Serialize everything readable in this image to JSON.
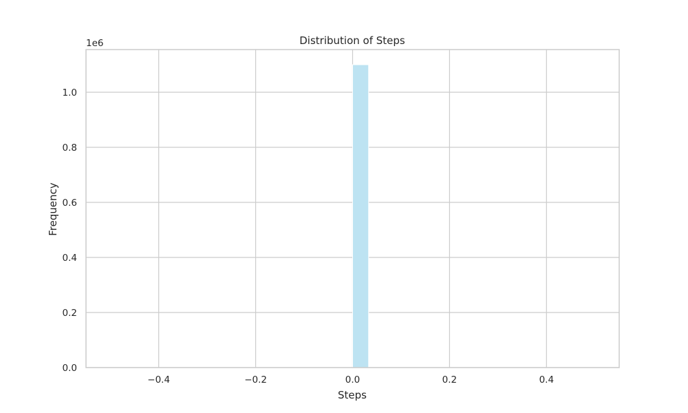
{
  "chart_data": {
    "type": "bar",
    "title": "Distribution of Steps",
    "xlabel": "Steps",
    "ylabel": "Frequency",
    "y_multiplier_label": "1e6",
    "xlim": [
      -0.55,
      0.55
    ],
    "ylim": [
      0,
      1.155
    ],
    "x_ticks": [
      -0.4,
      -0.2,
      0.0,
      0.2,
      0.4
    ],
    "x_tick_labels": [
      "−0.4",
      "−0.2",
      "0.0",
      "0.2",
      "0.4"
    ],
    "y_ticks": [
      0.0,
      0.2,
      0.4,
      0.6,
      0.8,
      1.0
    ],
    "y_tick_labels": [
      "0.0",
      "0.2",
      "0.4",
      "0.6",
      "0.8",
      "1.0"
    ],
    "bins": [
      {
        "x0": 0.0,
        "x1": 0.033,
        "value": 1.1
      }
    ],
    "grid": true,
    "bar_color": "#bde3f2",
    "bar_edge_color": "#ffffff",
    "grid_color": "#cccccc",
    "spine_color": "#cccccc"
  }
}
